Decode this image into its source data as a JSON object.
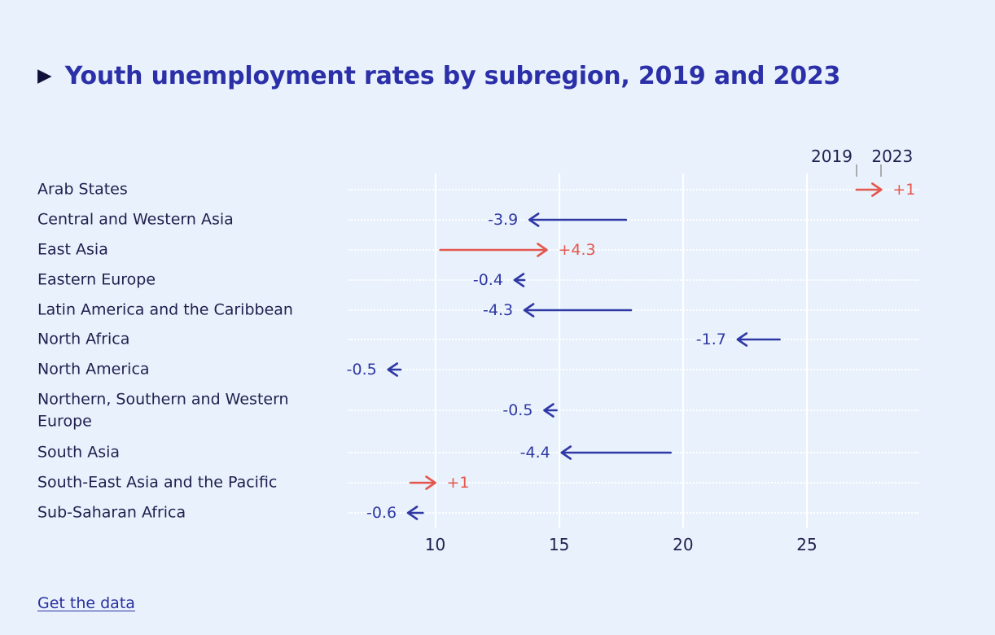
{
  "title": "Youth unemployment rates by subregion, 2019 and 2023",
  "legend": {
    "start_label": "2019",
    "end_label": "2023"
  },
  "axis": {
    "tick_labels": [
      "10",
      "15",
      "20",
      "25"
    ]
  },
  "footer": {
    "link_label": "Get the data"
  },
  "colors": {
    "background": "#e9f2fc",
    "title": "#2b2fa8",
    "text": "#20214f",
    "increase": "#e4574e",
    "decrease": "#2f38a5",
    "gridline": "#ffffff",
    "legend_tick": "#a8abb0"
  },
  "chart_data": {
    "type": "arrow",
    "title": "Youth unemployment rates by subregion, 2019 and 2023",
    "xlabel": "",
    "ylabel": "",
    "x_ticks": [
      10,
      15,
      20,
      25
    ],
    "x_range": [
      6.5,
      29.5
    ],
    "grid": true,
    "legend": [
      "2019",
      "2023"
    ],
    "rows": [
      {
        "label": "Arab States",
        "value_2019": 27.0,
        "value_2023": 28.0,
        "change": "+1",
        "direction": "increase"
      },
      {
        "label": "Central and Western Asia",
        "value_2019": 17.7,
        "value_2023": 13.8,
        "change": "-3.9",
        "direction": "decrease"
      },
      {
        "label": "East Asia",
        "value_2019": 10.2,
        "value_2023": 14.5,
        "change": "+4.3",
        "direction": "increase"
      },
      {
        "label": "Eastern Europe",
        "value_2019": 13.6,
        "value_2023": 13.2,
        "change": "-0.4",
        "direction": "decrease"
      },
      {
        "label": "Latin America and the Caribbean",
        "value_2019": 17.9,
        "value_2023": 13.6,
        "change": "-4.3",
        "direction": "decrease"
      },
      {
        "label": "North Africa",
        "value_2019": 23.9,
        "value_2023": 22.2,
        "change": "-1.7",
        "direction": "decrease"
      },
      {
        "label": "North America",
        "value_2019": 8.6,
        "value_2023": 8.1,
        "change": "-0.5",
        "direction": "decrease"
      },
      {
        "label": "Northern, Southern and Western Europe",
        "value_2019": 14.9,
        "value_2023": 14.4,
        "change": "-0.5",
        "direction": "decrease"
      },
      {
        "label": "South Asia",
        "value_2019": 19.5,
        "value_2023": 15.1,
        "change": "-4.4",
        "direction": "decrease"
      },
      {
        "label": "South-East Asia and the Pacific",
        "value_2019": 9.0,
        "value_2023": 10.0,
        "change": "+1",
        "direction": "increase"
      },
      {
        "label": "Sub-Saharan Africa",
        "value_2019": 9.5,
        "value_2023": 8.9,
        "change": "-0.6",
        "direction": "decrease"
      }
    ]
  }
}
